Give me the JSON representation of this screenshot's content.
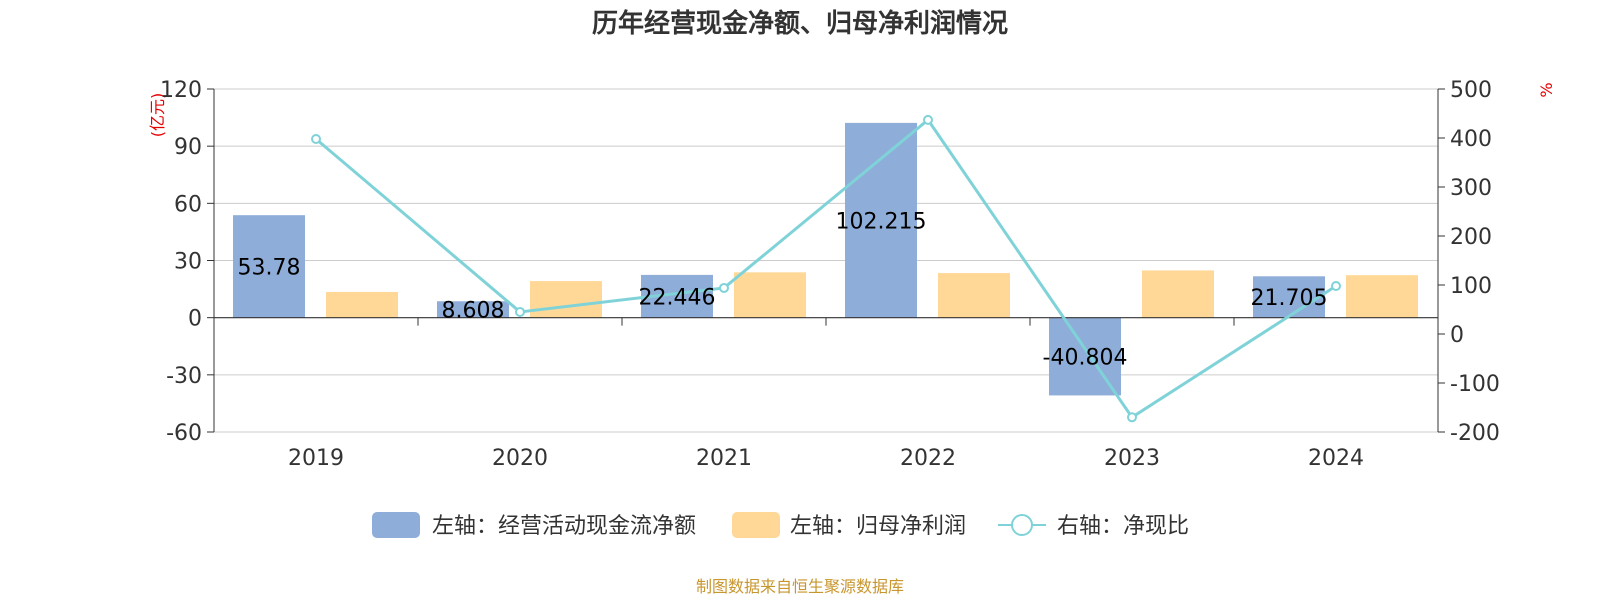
{
  "chart_data": {
    "type": "bar",
    "title": "历年经营现金净额、归母净利润情况",
    "categories": [
      "2019",
      "2020",
      "2021",
      "2022",
      "2023",
      "2024"
    ],
    "series": [
      {
        "name": "左轴：经营活动现金流净额",
        "kind": "bar",
        "axis": "left",
        "color": "#8eadd9",
        "values": [
          53.78,
          8.608,
          22.446,
          102.215,
          -40.804,
          21.705
        ],
        "labels": [
          "53.78",
          "8.608",
          "22.446",
          "102.215",
          "-40.804",
          "21.705"
        ]
      },
      {
        "name": "左轴：归母净利润",
        "kind": "bar",
        "axis": "left",
        "color": "#ffd897",
        "values": [
          13.5,
          19.2,
          23.8,
          23.4,
          24.8,
          22.3
        ]
      },
      {
        "name": "右轴：净现比",
        "kind": "line",
        "axis": "right",
        "color": "#7fd3d8",
        "values": [
          398,
          45,
          94,
          437,
          -170,
          98
        ]
      }
    ],
    "left_axis": {
      "label": "(亿元)",
      "min": -60,
      "max": 120,
      "step": 30,
      "ticks": [
        "120",
        "90",
        "60",
        "30",
        "0",
        "-30",
        "-60"
      ]
    },
    "right_axis": {
      "label": "%",
      "min": -200,
      "max": 500,
      "step": 100,
      "ticks": [
        "500",
        "400",
        "300",
        "200",
        "100",
        "0",
        "-100",
        "-200"
      ]
    },
    "grid": true,
    "legend_position": "bottom-center"
  },
  "source_text": "制图数据来自恒生聚源数据库"
}
